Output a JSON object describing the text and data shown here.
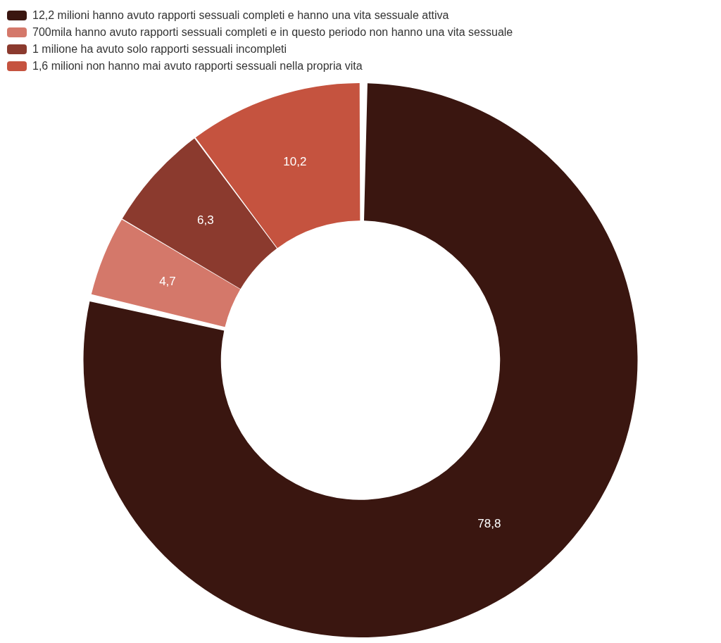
{
  "chart_data": {
    "type": "donut",
    "categories": [
      "12,2 milioni hanno avuto rapporti sessuali completi e hanno una vita sessuale attiva",
      "700mila hanno avuto rapporti sessuali completi e in questo periodo non hanno una vita sessuale",
      "1 milione ha avuto solo rapporti sessuali incompleti",
      "1,6 milioni non hanno mai avuto rapporti sessuali nella propria vita"
    ],
    "values": [
      78.8,
      4.7,
      6.3,
      10.2
    ],
    "colors": [
      "#3a1610",
      "#d4786a",
      "#8b3a2e",
      "#c5533f"
    ],
    "value_labels": [
      "78,8",
      "4,7",
      "6,3",
      "10,2"
    ],
    "legend": "top left"
  }
}
